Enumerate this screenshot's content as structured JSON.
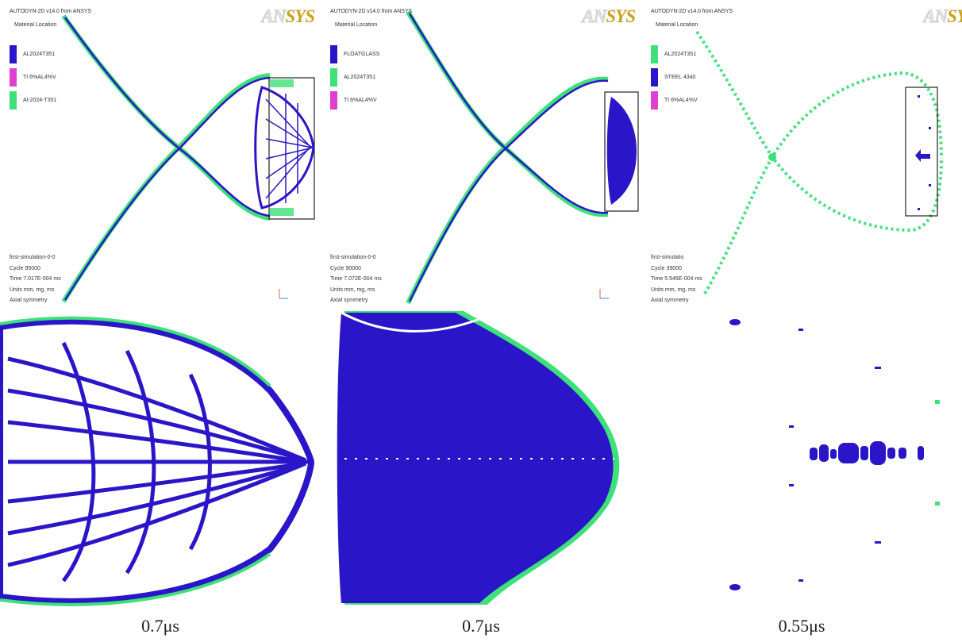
{
  "panels": [
    {
      "header": "AUTODYN-2D v14.0 from ANSYS",
      "sublabel": "Material Location",
      "logo_a": "AN",
      "logo_b": "SYS",
      "legend": [
        {
          "name": "AL2024T351",
          "color": "#2a16c8"
        },
        {
          "name": "TI 6%AL4%V",
          "color": "#e040d0"
        },
        {
          "name": "Al-2024-T351",
          "color": "#3ee07a"
        }
      ],
      "footer": [
        "first-simulation-0-0",
        "Cycle 95000",
        "Time 7.017E-004 ms",
        "Units mm, mg, ms",
        "Axial symmetry"
      ],
      "caption": "0.7μs"
    },
    {
      "header": "AUTODYN-2D v14.0 from ANSYS",
      "sublabel": "Material Location",
      "logo_a": "AN",
      "logo_b": "SYS",
      "legend": [
        {
          "name": "FLOATGLASS",
          "color": "#2a16c8"
        },
        {
          "name": "AL2024T351",
          "color": "#3ee07a"
        },
        {
          "name": "TI 6%AL4%V",
          "color": "#e040d0"
        }
      ],
      "footer": [
        "first-simulation-0-0",
        "Cycle 90000",
        "Time 7.072E-004 ms",
        "Units mm, mg, ms",
        "Axial symmetry"
      ],
      "caption": "0.7μs"
    },
    {
      "header": "AUTODYN-2D v14.0 from ANSYS",
      "sublabel": "Material Location",
      "logo_a": "AN",
      "logo_b": "SY",
      "legend": [
        {
          "name": "AL2024T351",
          "color": "#3ee07a"
        },
        {
          "name": "STEEL 4340",
          "color": "#2a16c8"
        },
        {
          "name": "TI 6%AL4%V",
          "color": "#e040d0"
        }
      ],
      "footer": [
        "first-simulatio",
        "Cycle 39000",
        "Time 5.546E-004 ms",
        "Units mm, mg, ms",
        "Axial symmetry"
      ],
      "caption": "0.55μs"
    }
  ]
}
